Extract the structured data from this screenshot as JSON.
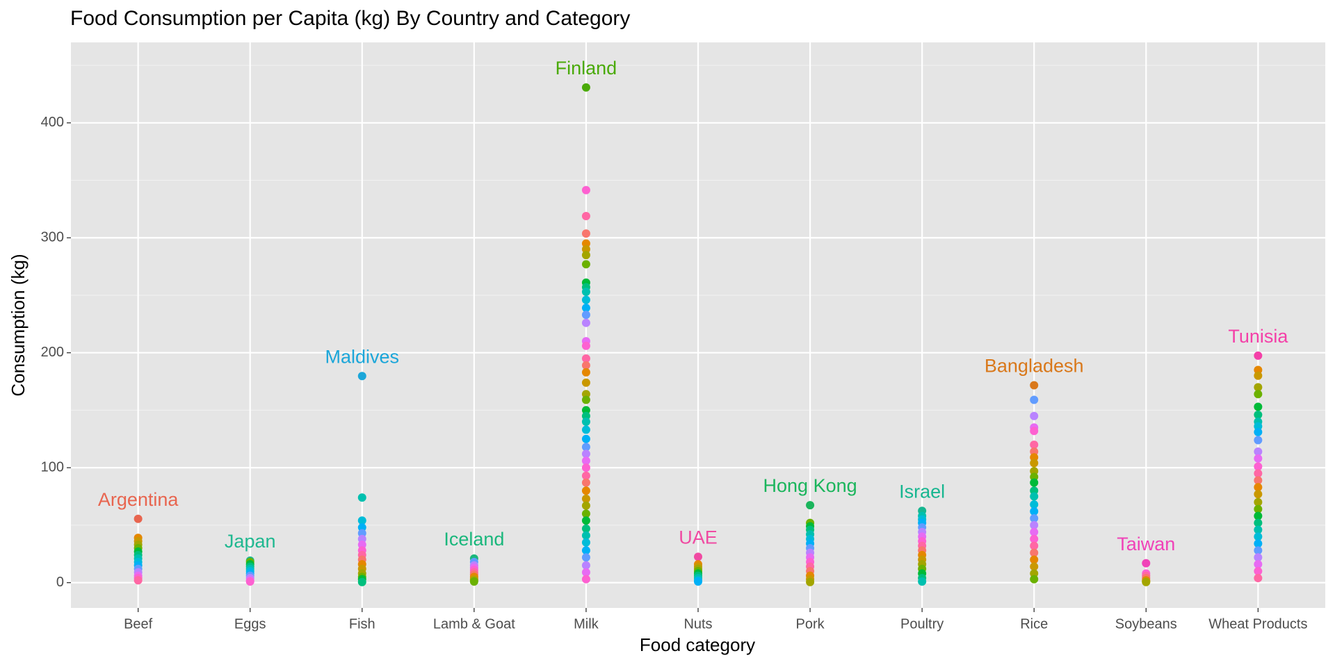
{
  "chart_data": {
    "type": "strip",
    "title": "Food Consumption per Capita (kg) By Country and Category",
    "x_label": "Food category",
    "y_label": "Consumption (kg)",
    "categories": [
      "Beef",
      "Eggs",
      "Fish",
      "Lamb & Goat",
      "Milk",
      "Nuts",
      "Pork",
      "Poultry",
      "Rice",
      "Soybeans",
      "Wheat Products"
    ],
    "values": [
      [
        55.5,
        39,
        36,
        33,
        30,
        27,
        24,
        21,
        18,
        15,
        12,
        9,
        6,
        4,
        2
      ],
      [
        19.2,
        18,
        16,
        14,
        12,
        10,
        8,
        6,
        4,
        2,
        1
      ],
      [
        179.7,
        74,
        54,
        48,
        43,
        38,
        33,
        28,
        24,
        20,
        16,
        12,
        8,
        5,
        3,
        0.5
      ],
      [
        21,
        18,
        15,
        13,
        11,
        9,
        7,
        5,
        3,
        2,
        1
      ],
      [
        430.8,
        341.5,
        318.9,
        303.7,
        295,
        290,
        285,
        277,
        261,
        257,
        253,
        246,
        239,
        233,
        226,
        210,
        206,
        195,
        189,
        183,
        174,
        164,
        159,
        150,
        145,
        140,
        133,
        125,
        118,
        112,
        106,
        100,
        93,
        87,
        80,
        73,
        67,
        60,
        54,
        47,
        41,
        35,
        28,
        22,
        15,
        9,
        3
      ],
      [
        22.5,
        16,
        14,
        12,
        10,
        8,
        6,
        4,
        2,
        1
      ],
      [
        67.4,
        52,
        49,
        46,
        42,
        38,
        34,
        30,
        26,
        22,
        18,
        14,
        10,
        6,
        3,
        0.5
      ],
      [
        62.5,
        58,
        55,
        52,
        48,
        44,
        40,
        36,
        32,
        28,
        24,
        20,
        16,
        12,
        8,
        4,
        1
      ],
      [
        171.7,
        159,
        145,
        135,
        132,
        120,
        114,
        109,
        104,
        97,
        92,
        87,
        80,
        75,
        68,
        62,
        56,
        50,
        44,
        38,
        32,
        26,
        20,
        14,
        8,
        3
      ],
      [
        16.9,
        8,
        6,
        4,
        2,
        1,
        0.5
      ],
      [
        197.5,
        185,
        180,
        170,
        164,
        153,
        146,
        140,
        136,
        131,
        124,
        114,
        108,
        101,
        95,
        89,
        83,
        77,
        70,
        64,
        58,
        52,
        46,
        40,
        34,
        28,
        22,
        16,
        10,
        4
      ]
    ],
    "palette": [
      "#F8766D",
      "#E58700",
      "#C99800",
      "#A3A500",
      "#6BB100",
      "#00BA38",
      "#00BF7D",
      "#00C0AF",
      "#00BCD8",
      "#00B0F6",
      "#619CFF",
      "#B983FF",
      "#E76BF3",
      "#FD61D1",
      "#FF67A4"
    ],
    "annotations": [
      {
        "text": "Argentina",
        "category": "Beef",
        "color": "#E8654F"
      },
      {
        "text": "Japan",
        "category": "Eggs",
        "color": "#1FB890"
      },
      {
        "text": "Maldives",
        "category": "Fish",
        "color": "#1BA6D9"
      },
      {
        "text": "Iceland",
        "category": "Lamb & Goat",
        "color": "#1AB77C"
      },
      {
        "text": "Finland",
        "category": "Milk",
        "color": "#4AAA08"
      },
      {
        "text": "UAE",
        "category": "Nuts",
        "color": "#F04AA2"
      },
      {
        "text": "Hong Kong",
        "category": "Pork",
        "color": "#1BB55C"
      },
      {
        "text": "Israel",
        "category": "Poultry",
        "color": "#17B690"
      },
      {
        "text": "Bangladesh",
        "category": "Rice",
        "color": "#D9781A"
      },
      {
        "text": "Taiwan",
        "category": "Soybeans",
        "color": "#F042B8"
      },
      {
        "text": "Tunisia",
        "category": "Wheat Products",
        "color": "#F440A8"
      }
    ],
    "ylim": [
      -22,
      470
    ],
    "yticks": [
      0,
      100,
      200,
      300,
      400
    ],
    "grid": true
  }
}
